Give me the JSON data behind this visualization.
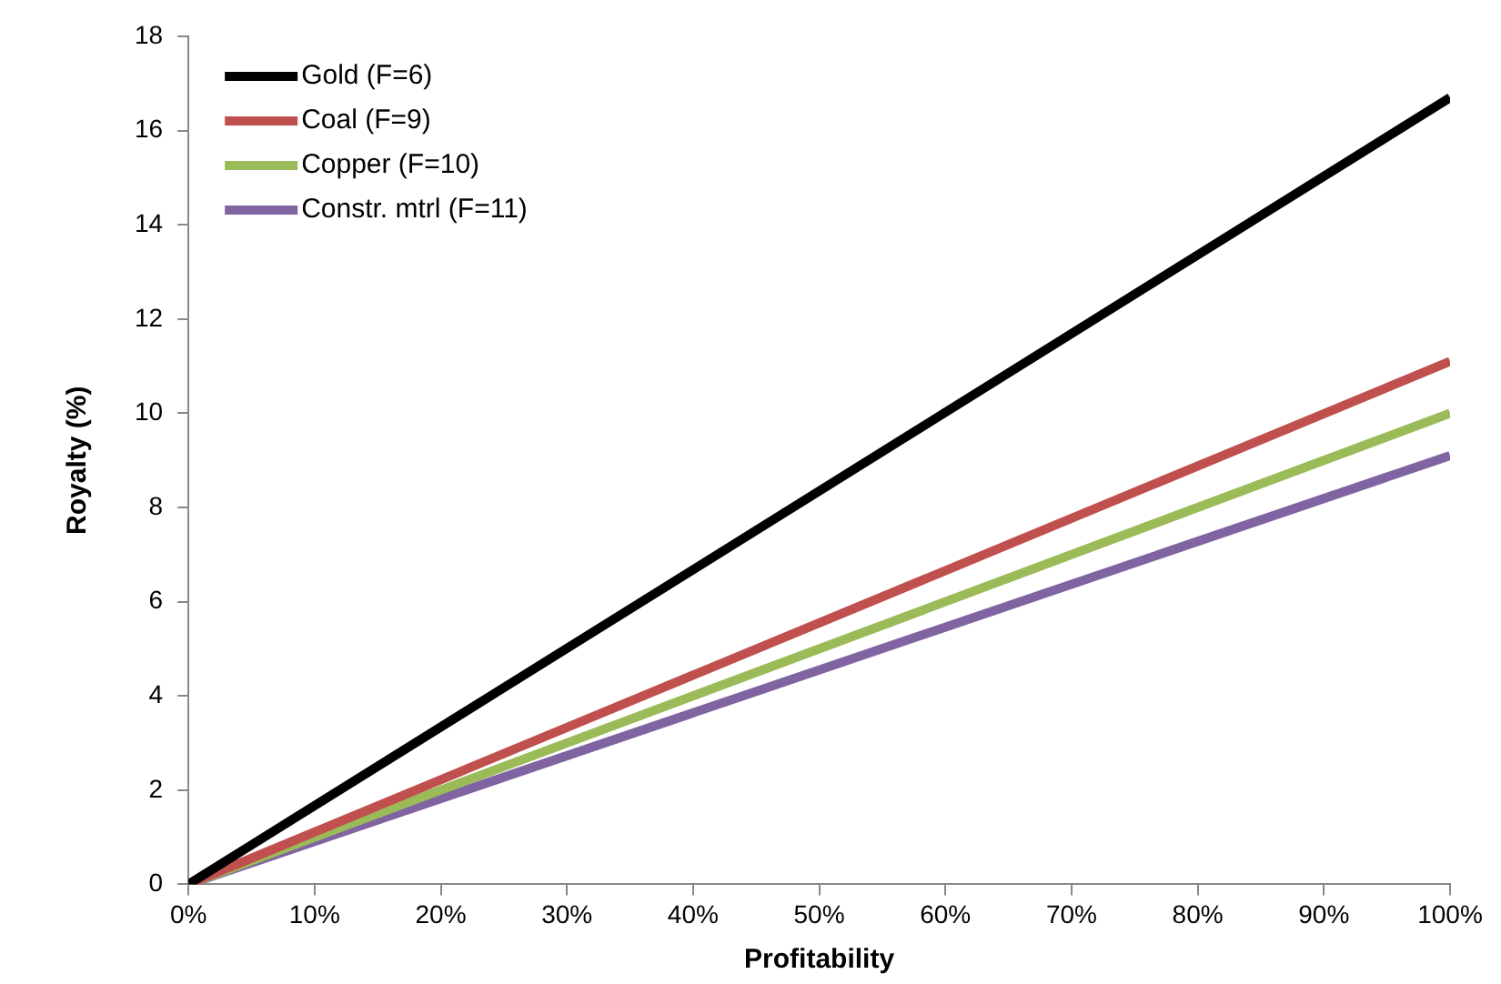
{
  "chart_data": {
    "type": "line",
    "xlabel": "Profitability",
    "ylabel": "Royalty (%)",
    "x": [
      0,
      100
    ],
    "series": [
      {
        "name": "Gold (F=6)",
        "color": "#000000",
        "values": [
          0,
          16.7
        ]
      },
      {
        "name": "Coal (F=9)",
        "color": "#c0504d",
        "values": [
          0,
          11.1
        ]
      },
      {
        "name": "Copper (F=10)",
        "color": "#9bbb59",
        "values": [
          0,
          10
        ]
      },
      {
        "name": "Constr. mtrl (F=11)",
        "color": "#8064a2",
        "values": [
          0,
          9.1
        ]
      }
    ],
    "xlim": [
      0,
      100
    ],
    "xticks": [
      {
        "value": 0,
        "label": "0%"
      },
      {
        "value": 10,
        "label": "10%"
      },
      {
        "value": 20,
        "label": "20%"
      },
      {
        "value": 30,
        "label": "30%"
      },
      {
        "value": 40,
        "label": "40%"
      },
      {
        "value": 50,
        "label": "50%"
      },
      {
        "value": 60,
        "label": "60%"
      },
      {
        "value": 70,
        "label": "70%"
      },
      {
        "value": 80,
        "label": "80%"
      },
      {
        "value": 90,
        "label": "90%"
      },
      {
        "value": 100,
        "label": "100%"
      }
    ],
    "ylim": [
      0,
      18
    ],
    "yticks": [
      0,
      2,
      4,
      6,
      8,
      10,
      12,
      14,
      16,
      18
    ],
    "grid": false,
    "legend": "top left",
    "marker": "none",
    "line_style": "solid"
  }
}
